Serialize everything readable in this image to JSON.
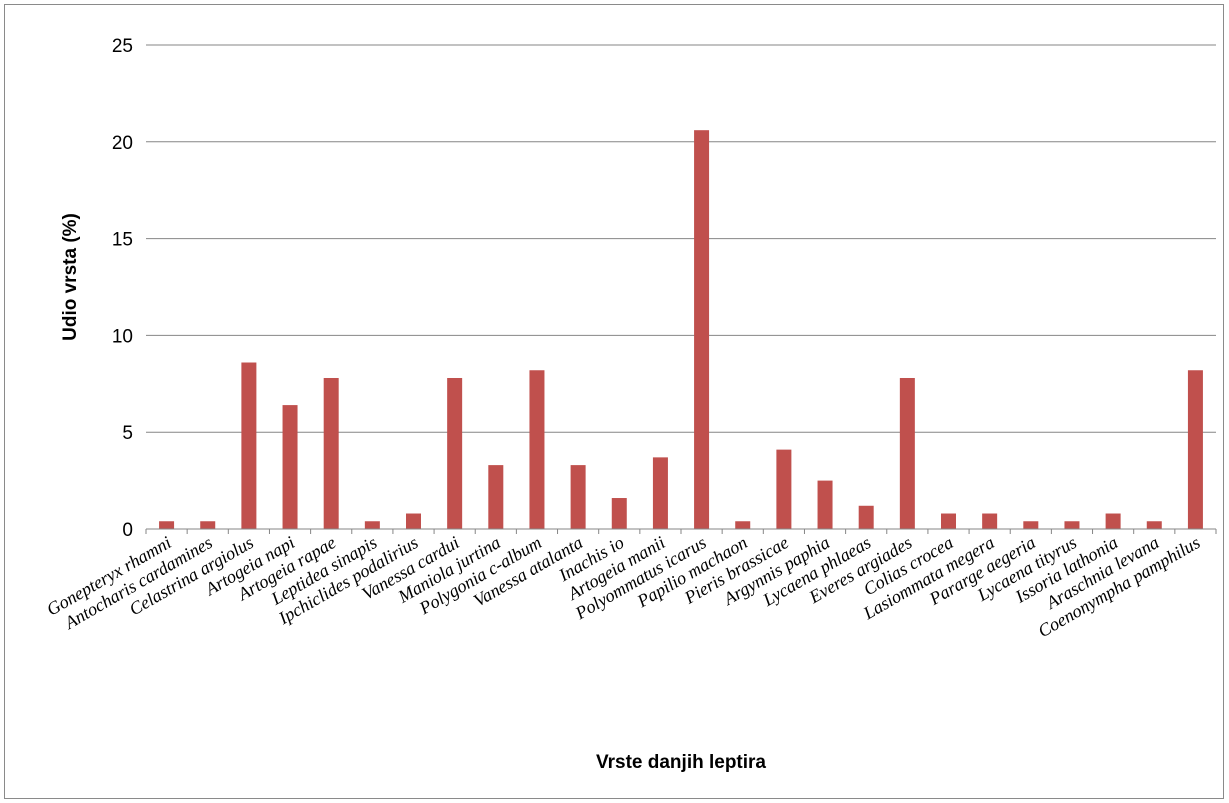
{
  "chart_data": {
    "type": "bar",
    "xlabel": "Vrste danjih leptira",
    "ylabel": "Udio vrsta (%)",
    "ylim": [
      0,
      25
    ],
    "yticks": [
      0,
      5,
      10,
      15,
      20,
      25
    ],
    "grid": true,
    "legend": "none",
    "bar_color": "#c0504d",
    "categories": [
      "Gonepteryx rhamni",
      "Antocharis cardamines",
      "Celastrina argiolus",
      "Artogeia napi",
      "Artogeia rapae",
      "Leptidea sinapis",
      "Ipchiclides podalirius",
      "Vanessa cardui",
      "Maniola jurtina",
      "Polygonia c-album",
      "Vanessa atalanta",
      "Inachis io",
      "Artogeia manii",
      "Polyommatus icarus",
      "Papilio machaon",
      "Pieris brassicae",
      "Argynnis paphia",
      "Lycaena phlaeas",
      "Everes argiades",
      "Colias crocea",
      "Lasiommata megera",
      "Pararge aegeria",
      "Lycaena tityrus",
      "Issoria lathonia",
      "Araschnia levana",
      "Coenonympha pamphilus"
    ],
    "values": [
      0.4,
      0.4,
      8.6,
      6.4,
      7.8,
      0.4,
      0.8,
      7.8,
      3.3,
      8.2,
      3.3,
      1.6,
      3.7,
      20.6,
      0.4,
      4.1,
      2.5,
      1.2,
      7.8,
      0.8,
      0.8,
      0.4,
      0.4,
      0.8,
      0.4,
      8.2
    ]
  }
}
